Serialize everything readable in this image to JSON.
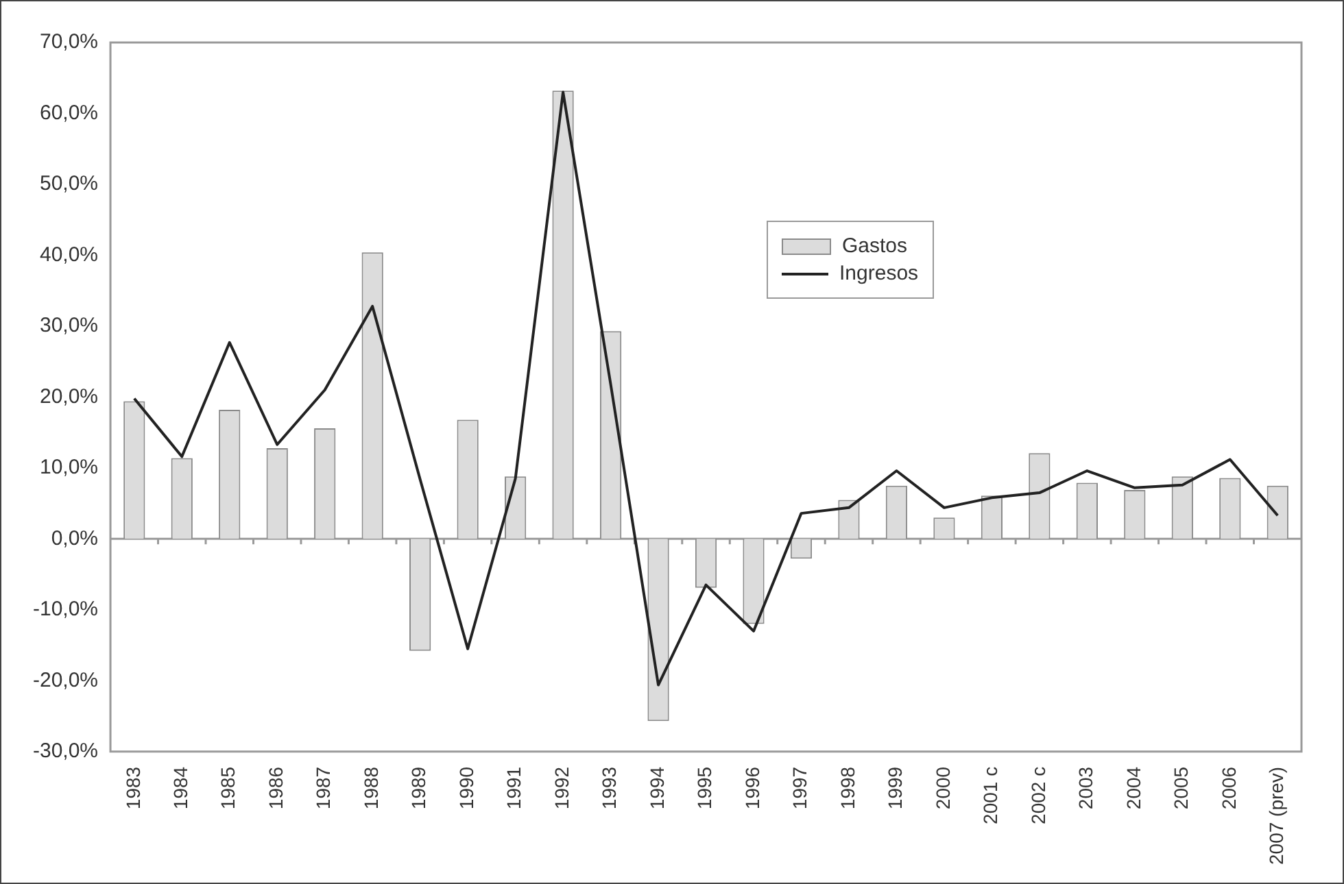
{
  "chart_data": {
    "type": "bar",
    "categories": [
      "1983",
      "1984",
      "1985",
      "1986",
      "1987",
      "1988",
      "1989",
      "1990",
      "1991",
      "1992",
      "1993",
      "1994",
      "1995",
      "1996",
      "1997",
      "1998",
      "1999",
      "2000",
      "2001 c",
      "2002 c",
      "2003",
      "2004",
      "2005",
      "2006",
      "2007 (prev)"
    ],
    "series": [
      {
        "name": "Gastos",
        "color": "#dcdcdc",
        "values": [
          19.4,
          11.4,
          18.2,
          12.8,
          15.6,
          40.4,
          -15.8,
          16.8,
          8.8,
          63.2,
          29.3,
          -25.7,
          -6.9,
          -12.0,
          -2.8,
          5.5,
          7.5,
          3.0,
          6.1,
          12.1,
          7.9,
          6.9,
          8.8,
          8.6,
          7.5
        ]
      },
      {
        "name": "Ingresos",
        "type": "line",
        "color": "#222222",
        "values": [
          19.8,
          11.6,
          27.7,
          13.3,
          21.0,
          32.8,
          8.4,
          -15.5,
          8.5,
          63.0,
          21.8,
          -20.6,
          -6.5,
          -13.0,
          3.6,
          4.4,
          9.6,
          4.4,
          5.8,
          6.5,
          9.6,
          7.2,
          7.6,
          11.2,
          3.3
        ]
      }
    ],
    "ylim": [
      -30,
      70
    ],
    "yticks": [
      {
        "value": -30,
        "label": "-30,0%"
      },
      {
        "value": -20,
        "label": "-20,0%"
      },
      {
        "value": -10,
        "label": "-10,0%"
      },
      {
        "value": 0,
        "label": "0,0%"
      },
      {
        "value": 10,
        "label": "10,0%"
      },
      {
        "value": 20,
        "label": "20,0%"
      },
      {
        "value": 30,
        "label": "30,0%"
      },
      {
        "value": 40,
        "label": "40,0%"
      },
      {
        "value": 50,
        "label": "50,0%"
      },
      {
        "value": 60,
        "label": "60,0%"
      },
      {
        "value": 70,
        "label": "70,0%"
      }
    ],
    "legend": "top right",
    "marker": "none"
  }
}
